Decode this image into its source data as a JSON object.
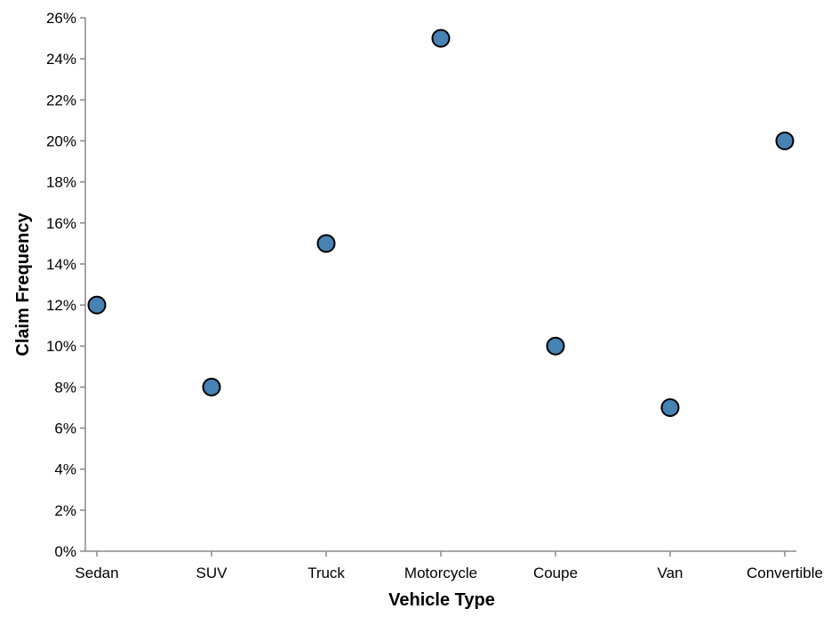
{
  "chart_data": {
    "type": "scatter",
    "title": "",
    "xlabel": "Vehicle Type",
    "ylabel": "Claim Frequency",
    "categories": [
      "Sedan",
      "SUV",
      "Truck",
      "Motorcycle",
      "Coupe",
      "Van",
      "Convertible"
    ],
    "values": [
      0.12,
      0.08,
      0.15,
      0.25,
      0.1,
      0.07,
      0.2
    ],
    "ylim": [
      0,
      0.26
    ],
    "yticks": [
      0,
      0.02,
      0.04,
      0.06,
      0.08,
      0.1,
      0.12,
      0.14,
      0.16,
      0.18,
      0.2,
      0.22,
      0.24,
      0.26
    ],
    "ytick_labels": [
      "0%",
      "2%",
      "4%",
      "6%",
      "8%",
      "10%",
      "12%",
      "14%",
      "16%",
      "18%",
      "20%",
      "22%",
      "24%",
      "26%"
    ],
    "grid": false,
    "legend": "none",
    "point_color": "#4682b4",
    "point_stroke": "#000000"
  }
}
